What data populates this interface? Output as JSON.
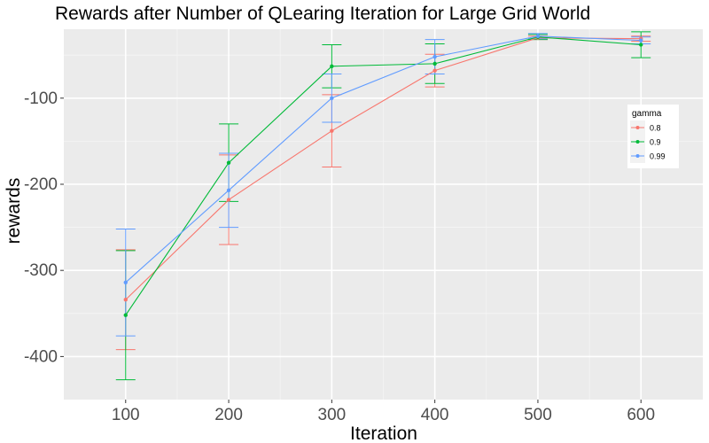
{
  "chart_data": {
    "type": "line",
    "title": "Rewards after Number of QLearing Iteration for Large Grid World",
    "xlabel": "Iteration",
    "ylabel": "rewards",
    "x": [
      100,
      200,
      300,
      400,
      500,
      600
    ],
    "xlim": [
      40,
      660
    ],
    "ylim": [
      -450,
      -20
    ],
    "x_ticks": [
      100,
      200,
      300,
      400,
      500,
      600
    ],
    "y_ticks": [
      -100,
      -200,
      -300,
      -400
    ],
    "grid": true,
    "legend": {
      "title": "gamma",
      "position": "right"
    },
    "series": [
      {
        "name": "0.8",
        "color": "#F8766D",
        "values": [
          -334,
          -218,
          -138,
          -68,
          -30,
          -31
        ],
        "err_low": [
          -392,
          -270,
          -180,
          -87,
          -32,
          -34
        ],
        "err_high": [
          -276,
          -166,
          -96,
          -49,
          -28,
          -28
        ]
      },
      {
        "name": "0.9",
        "color": "#00BA38",
        "values": [
          -352,
          -175,
          -63,
          -60,
          -29,
          -38
        ],
        "err_low": [
          -427,
          -220,
          -88,
          -83,
          -32,
          -53
        ],
        "err_high": [
          -277,
          -130,
          -38,
          -37,
          -26,
          -23
        ]
      },
      {
        "name": "0.99",
        "color": "#619CFF",
        "values": [
          -314,
          -207,
          -100,
          -52,
          -28,
          -33
        ],
        "err_low": [
          -376,
          -250,
          -128,
          -72,
          -31,
          -37
        ],
        "err_high": [
          -252,
          -164,
          -72,
          -32,
          -25,
          -29
        ]
      }
    ]
  }
}
